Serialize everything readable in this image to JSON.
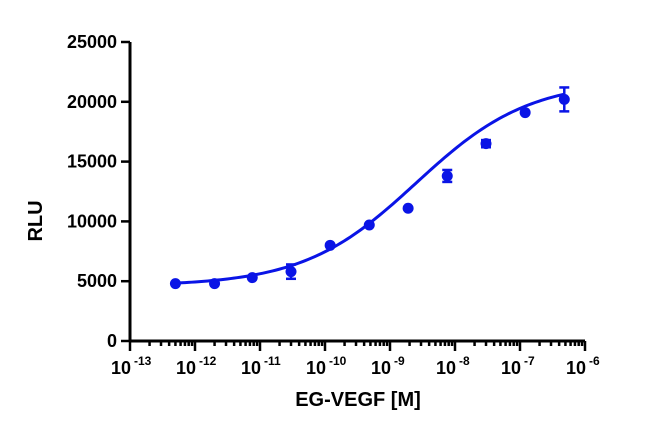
{
  "chart_data": {
    "type": "scatter",
    "xlabel": "EG-VEGF [M]",
    "ylabel": "RLU",
    "x_scale": "log",
    "xlim": [
      1e-13,
      1e-06
    ],
    "ylim": [
      0,
      25000
    ],
    "y_ticks": [
      "0",
      "5000",
      "10000",
      "15000",
      "20000",
      "25000"
    ],
    "x_ticks": [
      {
        "base": "10",
        "exp": "-13"
      },
      {
        "base": "10",
        "exp": "-12"
      },
      {
        "base": "10",
        "exp": "-11"
      },
      {
        "base": "10",
        "exp": "-10"
      },
      {
        "base": "10",
        "exp": "-9"
      },
      {
        "base": "10",
        "exp": "-8"
      },
      {
        "base": "10",
        "exp": "-7"
      },
      {
        "base": "10",
        "exp": "-6"
      }
    ],
    "points": [
      {
        "x": 5e-13,
        "y": 4800,
        "err": 150
      },
      {
        "x": 2e-12,
        "y": 4800,
        "err": 150
      },
      {
        "x": 7.6e-12,
        "y": 5300,
        "err": 200
      },
      {
        "x": 3e-11,
        "y": 5800,
        "err": 600
      },
      {
        "x": 1.2e-10,
        "y": 8000,
        "err": 200
      },
      {
        "x": 4.8e-10,
        "y": 9700,
        "err": 200
      },
      {
        "x": 1.9e-09,
        "y": 11100,
        "err": 200
      },
      {
        "x": 7.6e-09,
        "y": 13800,
        "err": 500
      },
      {
        "x": 3e-08,
        "y": 16500,
        "err": 300
      },
      {
        "x": 1.2e-07,
        "y": 19100,
        "err": 200
      },
      {
        "x": 4.8e-07,
        "y": 20200,
        "err": 1000
      }
    ],
    "fit_curve": {
      "bottom": 4600,
      "top": 21800,
      "log_ec50": -8.6,
      "hill": 0.5
    },
    "grid": false,
    "legend": "none",
    "color": "#0a14e6"
  }
}
